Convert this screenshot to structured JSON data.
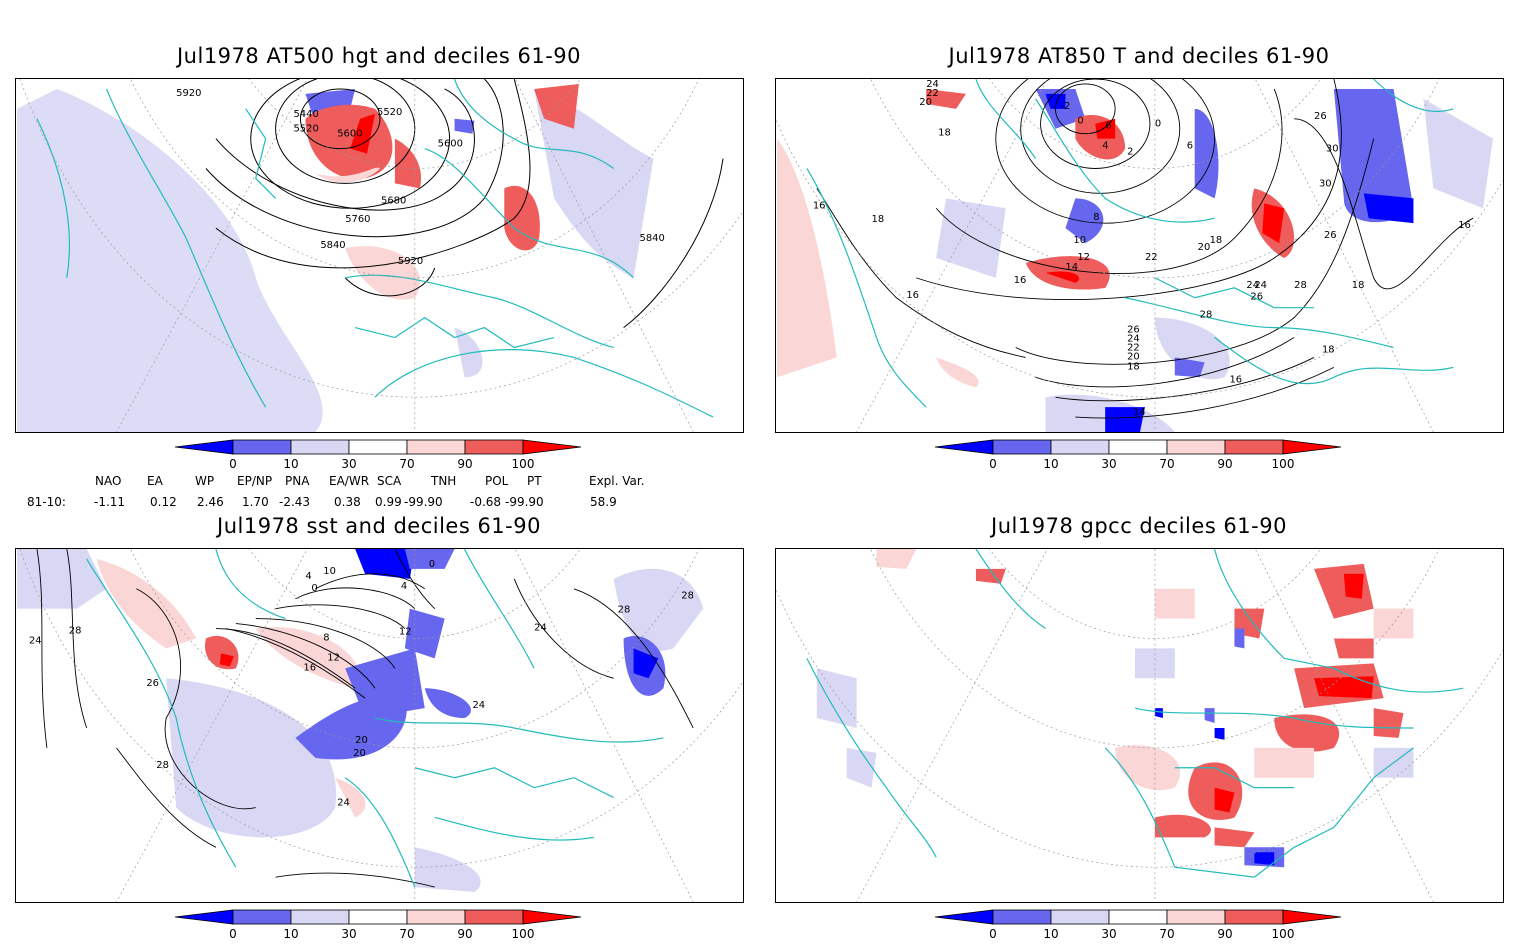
{
  "panels": [
    {
      "title": "Jul1978 AT500 hgt and deciles 61-90",
      "contour_labels": [
        "5920",
        "5440",
        "5520",
        "5600",
        "5520",
        "5600",
        "5680",
        "5760",
        "5840",
        "5920",
        "5840"
      ]
    },
    {
      "title": "Jul1978 AT850 T and deciles 61-90",
      "contour_labels": [
        "24",
        "22",
        "20",
        "18",
        "-2",
        "0",
        "6",
        "4",
        "2",
        "0",
        "6",
        "8",
        "10",
        "12",
        "14",
        "16",
        "16",
        "16",
        "18",
        "20",
        "22",
        "24",
        "26",
        "28",
        "18",
        "26",
        "24",
        "22",
        "20",
        "18",
        "16",
        "14",
        "26",
        "30",
        "30",
        "26",
        "24",
        "28",
        "16",
        "18",
        "18"
      ]
    },
    {
      "title": "Jul1978 sst and deciles 61-90",
      "contour_labels": [
        "24",
        "28",
        "26",
        "28",
        "24",
        "20",
        "20",
        "16",
        "12",
        "8",
        "4",
        "0",
        "10",
        "12",
        "24",
        "28",
        "28",
        "24",
        "4",
        "0"
      ]
    },
    {
      "title": "Jul1978 gpcc deciles 61-90",
      "contour_labels": []
    }
  ],
  "colorbar": {
    "labels": [
      "0",
      "10",
      "30",
      "70",
      "90",
      "100"
    ],
    "colors": [
      "#0000ff",
      "#6666ee",
      "#d8d8f5",
      "#ffffff",
      "#fbd6d6",
      "#ee5c5c",
      "#ff0000"
    ]
  },
  "indices": {
    "headers": [
      "NAO",
      "EA",
      "WP",
      "EP/NP",
      "PNA",
      "EA/WR",
      "SCA",
      "TNH",
      "POL",
      "PT",
      "Expl. Var."
    ],
    "row_label": "81-10:",
    "values": [
      "-1.11",
      "0.12",
      "2.46",
      "1.70",
      "-2.43",
      "0.38",
      "0.99",
      "-99.90",
      "-0.68",
      "-99.90",
      "58.9"
    ]
  },
  "colors": {
    "coast": "#22bbbb",
    "blue_mid": "#6666ee",
    "blue_light": "#d8d8f5",
    "red_mid": "#ee5c5c",
    "red_light": "#fbd6d6",
    "red_dark": "#ff0000",
    "blue_dark": "#0000ff"
  }
}
